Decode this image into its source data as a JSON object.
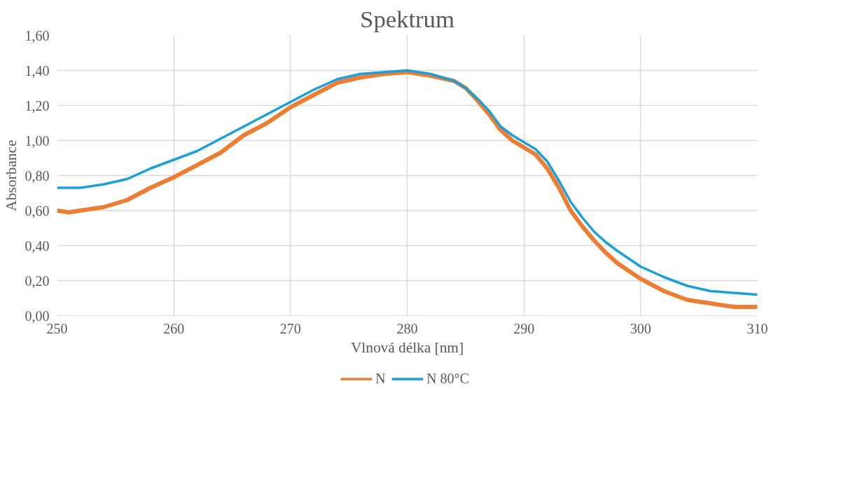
{
  "chart_data": {
    "type": "line",
    "title": "Spektrum",
    "xlabel": "Vlnová délka [nm]",
    "ylabel": "Absorbance",
    "xlim": [
      250,
      310
    ],
    "xticks": [
      250,
      260,
      270,
      280,
      290,
      300,
      310
    ],
    "ylim": [
      0,
      1.6
    ],
    "yticks": [
      {
        "value": 0,
        "label": "0,00"
      },
      {
        "value": 0.2,
        "label": "0,20"
      },
      {
        "value": 0.4,
        "label": "0,40"
      },
      {
        "value": 0.6,
        "label": "0,60"
      },
      {
        "value": 0.8,
        "label": "0,80"
      },
      {
        "value": 1.0,
        "label": "1,00"
      },
      {
        "value": 1.2,
        "label": "1,20"
      },
      {
        "value": 1.4,
        "label": "1,40"
      },
      {
        "value": 1.6,
        "label": "1,60"
      }
    ],
    "grid": true,
    "legend": "bottom",
    "marker": "none",
    "line_style": "solid",
    "x": [
      250,
      251,
      252,
      254,
      256,
      258,
      260,
      262,
      264,
      266,
      268,
      270,
      272,
      274,
      276,
      278,
      280,
      282,
      284,
      285,
      286,
      287,
      288,
      289,
      290,
      291,
      292,
      293,
      294,
      295,
      296,
      297,
      298,
      300,
      302,
      304,
      306,
      308,
      310
    ],
    "series": [
      {
        "name": "N",
        "color": "#ed7d31",
        "values": [
          0.6,
          0.59,
          0.6,
          0.62,
          0.66,
          0.73,
          0.79,
          0.86,
          0.93,
          1.03,
          1.1,
          1.19,
          1.26,
          1.33,
          1.36,
          1.38,
          1.39,
          1.37,
          1.34,
          1.3,
          1.23,
          1.15,
          1.06,
          1.0,
          0.96,
          0.92,
          0.84,
          0.73,
          0.6,
          0.51,
          0.43,
          0.36,
          0.3,
          0.21,
          0.14,
          0.09,
          0.07,
          0.05,
          0.05
        ]
      },
      {
        "name": "N 80°C",
        "color": "#1aa0d8",
        "values": [
          0.73,
          0.73,
          0.73,
          0.75,
          0.78,
          0.84,
          0.89,
          0.94,
          1.01,
          1.08,
          1.15,
          1.22,
          1.29,
          1.35,
          1.38,
          1.39,
          1.4,
          1.38,
          1.34,
          1.3,
          1.24,
          1.17,
          1.08,
          1.03,
          0.99,
          0.95,
          0.88,
          0.77,
          0.65,
          0.56,
          0.48,
          0.42,
          0.37,
          0.28,
          0.22,
          0.17,
          0.14,
          0.13,
          0.12
        ]
      }
    ]
  }
}
